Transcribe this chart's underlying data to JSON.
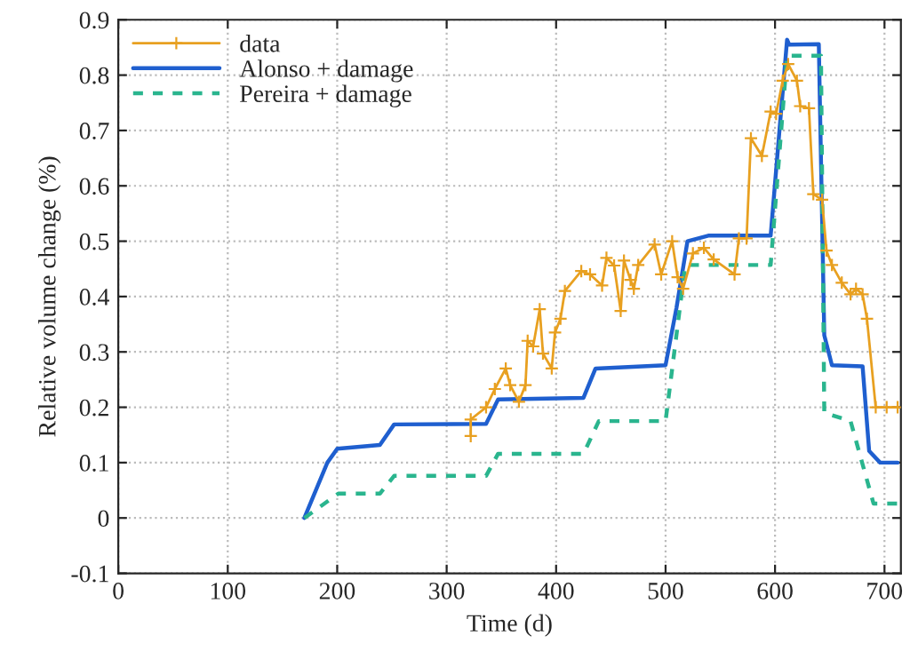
{
  "chart_data": {
    "type": "line",
    "xlabel": "Time (d)",
    "ylabel": "Relative volume change (%)",
    "xlim": [
      0,
      715
    ],
    "xticks": [
      0,
      100,
      200,
      300,
      400,
      500,
      600,
      700
    ],
    "ylim": [
      -0.1,
      0.9
    ],
    "yticks": [
      -0.1,
      0,
      0.1,
      0.2,
      0.3,
      0.4,
      0.5,
      0.6,
      0.7,
      0.8,
      0.9
    ],
    "grid": true,
    "legend": "top left",
    "series": [
      {
        "name": "data",
        "color": "#e8a020",
        "marker": "cross",
        "line_style": "solid",
        "x": [
          322,
          322,
          336,
          344,
          354,
          358,
          366,
          372,
          374,
          379,
          385,
          388,
          396,
          399,
          404,
          408,
          423,
          431,
          442,
          446,
          453,
          459,
          462,
          468,
          471,
          475,
          490,
          496,
          506,
          511,
          516,
          525,
          535,
          544,
          563,
          567,
          574,
          578,
          588,
          596,
          601,
          607,
          612,
          620,
          623,
          631,
          635,
          643,
          647,
          652,
          661,
          669,
          674,
          680,
          684,
          692,
          702,
          712
        ],
        "values": [
          0.148,
          0.178,
          0.2,
          0.233,
          0.27,
          0.24,
          0.21,
          0.24,
          0.32,
          0.31,
          0.377,
          0.297,
          0.27,
          0.335,
          0.36,
          0.41,
          0.446,
          0.44,
          0.42,
          0.47,
          0.456,
          0.374,
          0.465,
          0.43,
          0.414,
          0.457,
          0.494,
          0.44,
          0.5,
          0.435,
          0.414,
          0.478,
          0.488,
          0.467,
          0.44,
          0.505,
          0.505,
          0.686,
          0.654,
          0.734,
          0.73,
          0.79,
          0.82,
          0.79,
          0.744,
          0.74,
          0.585,
          0.575,
          0.483,
          0.457,
          0.425,
          0.404,
          0.414,
          0.404,
          0.36,
          0.2,
          0.2,
          0.2
        ]
      },
      {
        "name": "Alonso + damage",
        "color": "#1f5fcf",
        "marker": "none",
        "line_style": "solid",
        "x": [
          170,
          191,
          200,
          239,
          252,
          336,
          347,
          425,
          436,
          500,
          510,
          520,
          539,
          596,
          611,
          613,
          640,
          645,
          652,
          680,
          686,
          696,
          712
        ],
        "values": [
          0,
          0.1,
          0.125,
          0.132,
          0.169,
          0.17,
          0.214,
          0.217,
          0.27,
          0.276,
          0.38,
          0.5,
          0.51,
          0.51,
          0.864,
          0.855,
          0.856,
          0.33,
          0.276,
          0.274,
          0.121,
          0.1,
          0.1
        ]
      },
      {
        "name": "Pereira + damage",
        "color": "#2ab58e",
        "marker": "none",
        "line_style": "dashed",
        "x": [
          170,
          201,
          239,
          252,
          336,
          347,
          425,
          439,
          500,
          518,
          596,
          611,
          642,
          645,
          669,
          690,
          712
        ],
        "values": [
          0,
          0.044,
          0.044,
          0.076,
          0.076,
          0.116,
          0.116,
          0.175,
          0.175,
          0.457,
          0.457,
          0.835,
          0.835,
          0.19,
          0.175,
          0.026,
          0.026
        ]
      }
    ]
  }
}
